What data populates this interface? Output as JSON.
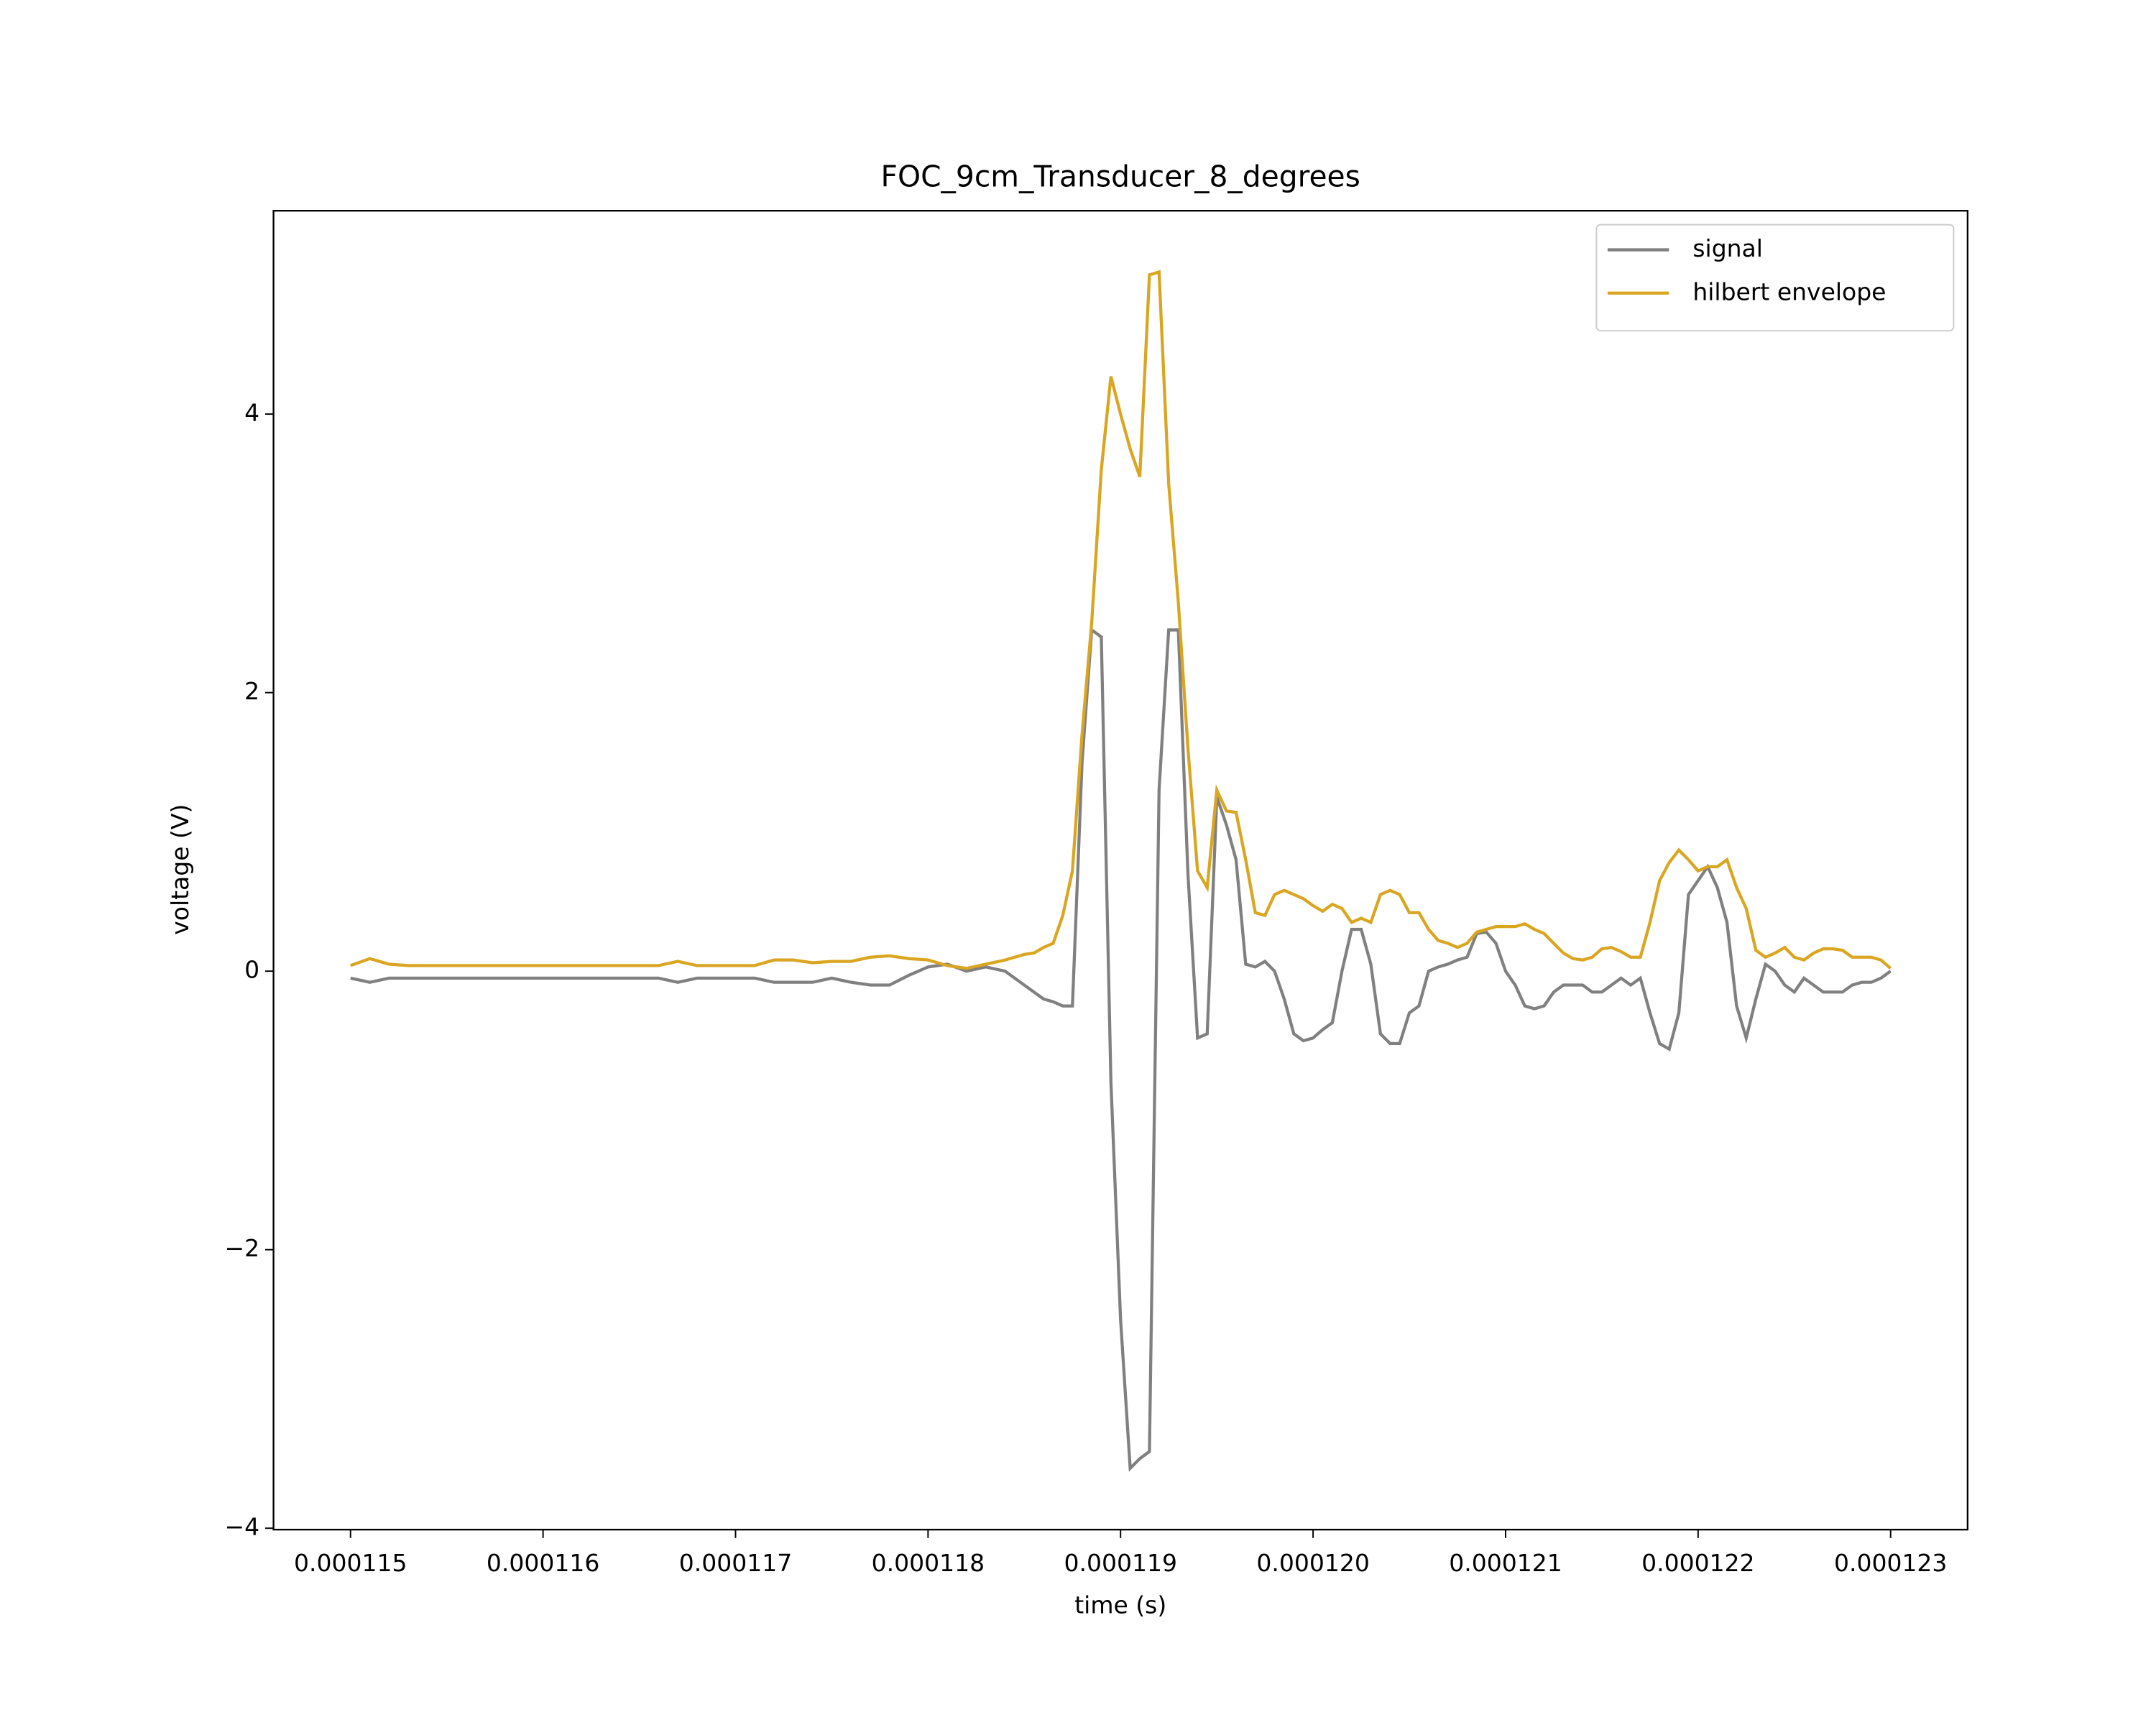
{
  "chart_data": {
    "type": "line",
    "title": "FOC_9cm_Transducer_8_degrees",
    "x_label": "time (s)",
    "y_label": "voltage (V)",
    "x": [
      0.000115,
      0.0001151,
      0.0001152,
      0.0001153,
      0.0001154,
      0.0001155,
      0.0001156,
      0.0001157,
      0.0001158,
      0.0001159,
      0.000116,
      0.0001161,
      0.0001162,
      0.0001163,
      0.0001164,
      0.0001165,
      0.0001166,
      0.0001167,
      0.0001168,
      0.0001169,
      0.000117,
      0.0001171,
      0.0001172,
      0.0001173,
      0.0001174,
      0.0001175,
      0.0001176,
      0.0001177,
      0.0001178,
      0.0001179,
      0.000118,
      0.0001181,
      0.0001182,
      0.0001183,
      0.0001184,
      0.0001185,
      0.00011855,
      0.0001186,
      0.00011865,
      0.0001187,
      0.00011875,
      0.0001188,
      0.00011885,
      0.0001189,
      0.00011895,
      0.000119,
      0.00011905,
      0.0001191,
      0.00011915,
      0.0001192,
      0.00011925,
      0.0001193,
      0.00011935,
      0.0001194,
      0.00011945,
      0.0001195,
      0.00011955,
      0.0001196,
      0.00011965,
      0.0001197,
      0.00011975,
      0.0001198,
      0.00011985,
      0.0001199,
      0.00011995,
      0.00012,
      0.00012005,
      0.0001201,
      0.00012015,
      0.0001202,
      0.00012025,
      0.0001203,
      0.00012035,
      0.0001204,
      0.00012045,
      0.0001205,
      0.00012055,
      0.0001206,
      0.00012065,
      0.0001207,
      0.00012075,
      0.0001208,
      0.00012085,
      0.0001209,
      0.00012095,
      0.000121,
      0.00012105,
      0.0001211,
      0.00012115,
      0.0001212,
      0.00012125,
      0.0001213,
      0.00012135,
      0.0001214,
      0.00012145,
      0.0001215,
      0.00012155,
      0.0001216,
      0.00012165,
      0.0001217,
      0.00012175,
      0.0001218,
      0.00012185,
      0.0001219,
      0.00012195,
      0.000122,
      0.00012205,
      0.0001221,
      0.00012215,
      0.0001222,
      0.00012225,
      0.0001223,
      0.00012235,
      0.0001224,
      0.00012245,
      0.0001225,
      0.00012255,
      0.0001226,
      0.00012265,
      0.0001227,
      0.00012275,
      0.0001228,
      0.00012285,
      0.0001229,
      0.00012295,
      0.000123
    ],
    "series": [
      {
        "name": "signal",
        "color": "#808080",
        "values": [
          -0.05,
          -0.08,
          -0.05,
          -0.05,
          -0.05,
          -0.05,
          -0.05,
          -0.05,
          -0.05,
          -0.05,
          -0.05,
          -0.05,
          -0.05,
          -0.05,
          -0.05,
          -0.05,
          -0.05,
          -0.08,
          -0.05,
          -0.05,
          -0.05,
          -0.05,
          -0.08,
          -0.08,
          -0.08,
          -0.05,
          -0.08,
          -0.1,
          -0.1,
          -0.03,
          0.03,
          0.05,
          0.0,
          0.03,
          0.0,
          -0.1,
          -0.15,
          -0.2,
          -0.22,
          -0.25,
          -0.25,
          1.5,
          2.45,
          2.4,
          -0.8,
          -2.5,
          -3.57,
          -3.5,
          -3.45,
          1.3,
          2.45,
          2.45,
          0.7,
          -0.48,
          -0.45,
          1.25,
          1.05,
          0.8,
          0.05,
          0.03,
          0.07,
          0.0,
          -0.2,
          -0.45,
          -0.5,
          -0.48,
          -0.42,
          -0.37,
          0.0,
          0.3,
          0.3,
          0.05,
          -0.45,
          -0.52,
          -0.52,
          -0.3,
          -0.25,
          0.0,
          0.03,
          0.05,
          0.08,
          0.1,
          0.27,
          0.28,
          0.2,
          0.0,
          -0.1,
          -0.25,
          -0.27,
          -0.25,
          -0.15,
          -0.1,
          -0.1,
          -0.1,
          -0.15,
          -0.15,
          -0.1,
          -0.05,
          -0.1,
          -0.05,
          -0.3,
          -0.52,
          -0.56,
          -0.3,
          0.55,
          0.65,
          0.75,
          0.6,
          0.35,
          -0.25,
          -0.48,
          -0.2,
          0.05,
          0.0,
          -0.1,
          -0.15,
          -0.05,
          -0.1,
          -0.15,
          -0.15,
          -0.15,
          -0.1,
          -0.08,
          -0.08,
          -0.05,
          0.0
        ]
      },
      {
        "name": "hilbert envelope",
        "color": "#daa520",
        "values": [
          0.04,
          0.09,
          0.05,
          0.04,
          0.04,
          0.04,
          0.04,
          0.04,
          0.04,
          0.04,
          0.04,
          0.04,
          0.04,
          0.04,
          0.04,
          0.04,
          0.04,
          0.07,
          0.04,
          0.04,
          0.04,
          0.04,
          0.08,
          0.08,
          0.06,
          0.07,
          0.07,
          0.1,
          0.11,
          0.09,
          0.08,
          0.04,
          0.02,
          0.05,
          0.08,
          0.12,
          0.13,
          0.17,
          0.2,
          0.4,
          0.72,
          1.7,
          2.5,
          3.6,
          4.27,
          4.0,
          3.75,
          3.55,
          5.0,
          5.02,
          3.5,
          2.65,
          1.6,
          0.72,
          0.6,
          1.3,
          1.15,
          1.14,
          0.8,
          0.42,
          0.4,
          0.55,
          0.58,
          0.55,
          0.52,
          0.47,
          0.43,
          0.48,
          0.45,
          0.35,
          0.38,
          0.35,
          0.55,
          0.58,
          0.55,
          0.42,
          0.42,
          0.3,
          0.22,
          0.2,
          0.17,
          0.2,
          0.28,
          0.3,
          0.32,
          0.32,
          0.32,
          0.34,
          0.3,
          0.27,
          0.2,
          0.13,
          0.09,
          0.08,
          0.1,
          0.16,
          0.17,
          0.14,
          0.1,
          0.1,
          0.35,
          0.65,
          0.78,
          0.87,
          0.8,
          0.72,
          0.75,
          0.75,
          0.8,
          0.6,
          0.45,
          0.15,
          0.1,
          0.13,
          0.17,
          0.1,
          0.08,
          0.13,
          0.16,
          0.16,
          0.15,
          0.1,
          0.1,
          0.1,
          0.08,
          0.02
        ]
      }
    ],
    "xlim": [
      0.0001146,
      0.0001234
    ],
    "ylim": [
      -4.01,
      5.46
    ],
    "xticks": [
      0.000115,
      0.000116,
      0.000117,
      0.000118,
      0.000119,
      {
        "value": 0.00012,
        "label": "0.000120"
      },
      0.000121,
      0.000122,
      0.000123
    ],
    "yticks": [
      {
        "value": -4,
        "label": "−4"
      },
      {
        "value": -2,
        "label": "−2"
      },
      0,
      2,
      4
    ],
    "legend": "upper right"
  }
}
